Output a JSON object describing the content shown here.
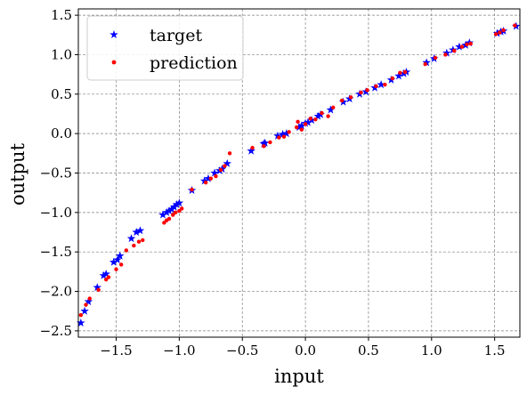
{
  "chart_data": {
    "type": "scatter",
    "title": "",
    "xlabel": "input",
    "ylabel": "output",
    "xlim": [
      -1.8,
      1.7
    ],
    "ylim": [
      -2.58,
      1.58
    ],
    "xticks": [
      -1.5,
      -1.0,
      -0.5,
      0.0,
      0.5,
      1.0,
      1.5
    ],
    "xtick_labels": [
      "−1.5",
      "−1.0",
      "−0.5",
      "0.0",
      "0.5",
      "1.0",
      "1.5"
    ],
    "yticks": [
      -2.5,
      -2.0,
      -1.5,
      -1.0,
      -0.5,
      0.0,
      0.5,
      1.0,
      1.5
    ],
    "ytick_labels": [
      "−2.5",
      "−2.0",
      "−1.5",
      "−1.0",
      "−0.5",
      "0.0",
      "0.5",
      "1.0",
      "1.5"
    ],
    "grid": true,
    "legend_position": "top-left",
    "series": [
      {
        "name": "target",
        "marker": "star",
        "color": "#0000ff",
        "points": [
          [
            -1.78,
            -2.4
          ],
          [
            -1.75,
            -2.25
          ],
          [
            -1.72,
            -2.13
          ],
          [
            -1.65,
            -1.95
          ],
          [
            -1.6,
            -1.8
          ],
          [
            -1.58,
            -1.78
          ],
          [
            -1.52,
            -1.63
          ],
          [
            -1.49,
            -1.6
          ],
          [
            -1.47,
            -1.55
          ],
          [
            -1.38,
            -1.33
          ],
          [
            -1.34,
            -1.25
          ],
          [
            -1.31,
            -1.23
          ],
          [
            -1.13,
            -1.03
          ],
          [
            -1.1,
            -1.0
          ],
          [
            -1.08,
            -0.98
          ],
          [
            -1.06,
            -0.96
          ],
          [
            -1.04,
            -0.93
          ],
          [
            -1.02,
            -0.9
          ],
          [
            -1.0,
            -0.88
          ],
          [
            -0.9,
            -0.72
          ],
          [
            -0.8,
            -0.6
          ],
          [
            -0.77,
            -0.57
          ],
          [
            -0.72,
            -0.5
          ],
          [
            -0.68,
            -0.47
          ],
          [
            -0.66,
            -0.45
          ],
          [
            -0.62,
            -0.38
          ],
          [
            -0.43,
            -0.22
          ],
          [
            -0.33,
            -0.13
          ],
          [
            -0.32,
            -0.12
          ],
          [
            -0.22,
            -0.03
          ],
          [
            -0.18,
            -0.01
          ],
          [
            -0.15,
            0.0
          ],
          [
            -0.05,
            0.08
          ],
          [
            -0.03,
            0.1
          ],
          [
            0.0,
            0.13
          ],
          [
            0.02,
            0.14
          ],
          [
            0.05,
            0.17
          ],
          [
            0.1,
            0.22
          ],
          [
            0.12,
            0.24
          ],
          [
            0.2,
            0.3
          ],
          [
            0.3,
            0.4
          ],
          [
            0.35,
            0.44
          ],
          [
            0.43,
            0.5
          ],
          [
            0.48,
            0.53
          ],
          [
            0.55,
            0.58
          ],
          [
            0.6,
            0.62
          ],
          [
            0.68,
            0.68
          ],
          [
            0.74,
            0.73
          ],
          [
            0.78,
            0.76
          ],
          [
            0.8,
            0.78
          ],
          [
            0.96,
            0.9
          ],
          [
            1.02,
            0.95
          ],
          [
            1.12,
            1.02
          ],
          [
            1.17,
            1.06
          ],
          [
            1.22,
            1.1
          ],
          [
            1.27,
            1.12
          ],
          [
            1.3,
            1.15
          ],
          [
            1.52,
            1.27
          ],
          [
            1.55,
            1.29
          ],
          [
            1.57,
            1.3
          ],
          [
            1.67,
            1.36
          ]
        ]
      },
      {
        "name": "prediction",
        "marker": "dot",
        "color": "#ff0000",
        "points": [
          [
            -1.78,
            -2.3
          ],
          [
            -1.74,
            -2.17
          ],
          [
            -1.71,
            -2.09
          ],
          [
            -1.64,
            -1.98
          ],
          [
            -1.58,
            -1.85
          ],
          [
            -1.56,
            -1.82
          ],
          [
            -1.5,
            -1.72
          ],
          [
            -1.46,
            -1.66
          ],
          [
            -1.42,
            -1.48
          ],
          [
            -1.36,
            -1.42
          ],
          [
            -1.32,
            -1.37
          ],
          [
            -1.29,
            -1.35
          ],
          [
            -1.12,
            -1.13
          ],
          [
            -1.1,
            -1.1
          ],
          [
            -1.08,
            -1.08
          ],
          [
            -1.05,
            -1.03
          ],
          [
            -1.03,
            -1.0
          ],
          [
            -1.0,
            -0.98
          ],
          [
            -0.98,
            -0.95
          ],
          [
            -0.9,
            -0.71
          ],
          [
            -0.79,
            -0.62
          ],
          [
            -0.75,
            -0.57
          ],
          [
            -0.71,
            -0.54
          ],
          [
            -0.67,
            -0.46
          ],
          [
            -0.64,
            -0.41
          ],
          [
            -0.6,
            -0.25
          ],
          [
            -0.42,
            -0.18
          ],
          [
            -0.33,
            -0.16
          ],
          [
            -0.28,
            -0.11
          ],
          [
            -0.21,
            -0.05
          ],
          [
            -0.17,
            -0.04
          ],
          [
            -0.13,
            0.02
          ],
          [
            -0.07,
            0.08
          ],
          [
            -0.06,
            0.15
          ],
          [
            -0.03,
            0.05
          ],
          [
            0.0,
            0.12
          ],
          [
            0.04,
            0.19
          ],
          [
            0.08,
            0.18
          ],
          [
            0.13,
            0.26
          ],
          [
            0.18,
            0.22
          ],
          [
            0.22,
            0.33
          ],
          [
            0.29,
            0.42
          ],
          [
            0.36,
            0.46
          ],
          [
            0.44,
            0.52
          ],
          [
            0.49,
            0.55
          ],
          [
            0.56,
            0.6
          ],
          [
            0.63,
            0.62
          ],
          [
            0.69,
            0.7
          ],
          [
            0.75,
            0.77
          ],
          [
            0.79,
            0.78
          ],
          [
            0.95,
            0.88
          ],
          [
            1.03,
            0.96
          ],
          [
            1.11,
            1.0
          ],
          [
            1.18,
            1.05
          ],
          [
            1.24,
            1.1
          ],
          [
            1.28,
            1.13
          ],
          [
            1.31,
            1.14
          ],
          [
            1.51,
            1.26
          ],
          [
            1.54,
            1.28
          ],
          [
            1.57,
            1.31
          ],
          [
            1.66,
            1.37
          ]
        ]
      }
    ]
  }
}
